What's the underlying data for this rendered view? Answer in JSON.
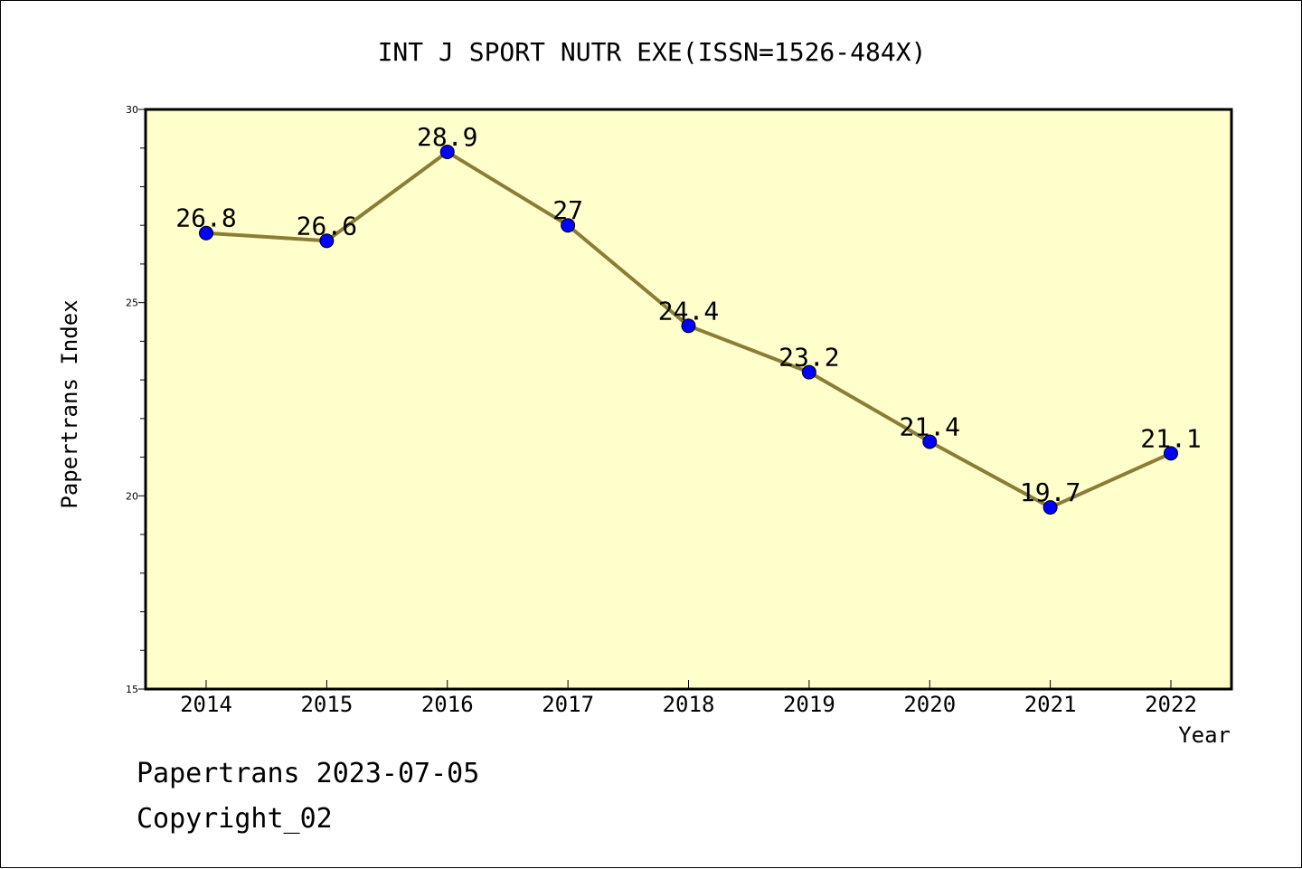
{
  "chart_data": {
    "type": "line",
    "title": "INT J SPORT NUTR EXE(ISSN=1526-484X)",
    "xlabel": "Year",
    "ylabel": "Papertrans Index",
    "categories": [
      "2014",
      "2015",
      "2016",
      "2017",
      "2018",
      "2019",
      "2020",
      "2021",
      "2022"
    ],
    "series": [
      {
        "values": [
          26.8,
          26.6,
          28.9,
          27,
          24.4,
          23.2,
          21.4,
          19.7,
          21.1
        ],
        "data_labels": [
          "26.8",
          "26.6",
          "28.9",
          "27",
          "24.4",
          "23.2",
          "21.4",
          "19.7",
          "21.1"
        ]
      }
    ],
    "ylim": [
      15,
      30
    ],
    "yticks": [
      "15",
      "20",
      "25",
      "30"
    ],
    "grid": false,
    "legend": "none",
    "colors": {
      "plot_background": "#ffffcc",
      "line": "#8b7d35",
      "marker": "#0000ff",
      "frame": "#000000"
    }
  },
  "footer": {
    "stamp": "Papertrans 2023-07-05",
    "copyright": "Copyright_02"
  }
}
